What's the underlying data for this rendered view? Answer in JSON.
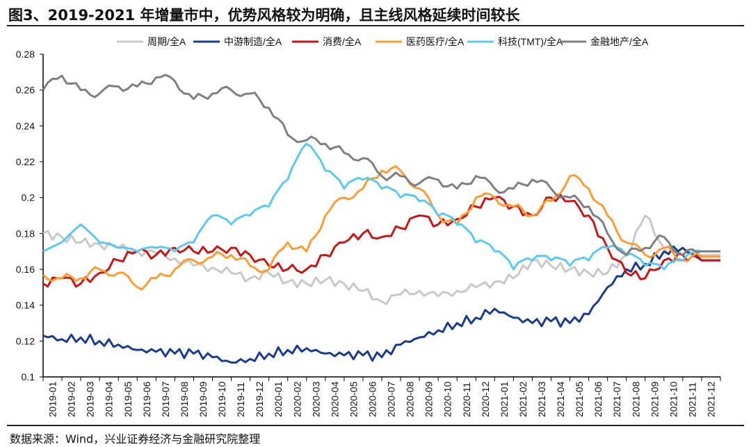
{
  "title": "图3、2019-2021 年增量市中，优势风格较为明确，且主线风格延续时间较长",
  "source": "数据来源：Wind，兴业证券经济与金融研究院整理",
  "chart_data": {
    "type": "line",
    "title": "",
    "xlabel": "",
    "ylabel": "",
    "ylim": [
      0.1,
      0.28
    ],
    "yticks": [
      "0.1",
      "0.12",
      "0.14",
      "0.16",
      "0.18",
      "0.2",
      "0.22",
      "0.24",
      "0.26",
      "0.28"
    ],
    "grid": false,
    "legend_position": "top",
    "x": [
      "2019-01",
      "2019-02",
      "2019-03",
      "2019-04",
      "2019-05",
      "2019-06",
      "2019-07",
      "2019-08",
      "2019-09",
      "2019-10",
      "2019-11",
      "2019-12",
      "2020-01",
      "2020-02",
      "2020-03",
      "2020-04",
      "2020-05",
      "2020-06",
      "2020-07",
      "2020-08",
      "2020-09",
      "2020-10",
      "2020-11",
      "2020-12",
      "2021-01",
      "2021-02",
      "2021-03",
      "2021-04",
      "2021-05",
      "2021-06",
      "2021-07",
      "2021-08",
      "2021-09",
      "2021-10",
      "2021-11",
      "2021-12"
    ],
    "series": [
      {
        "name": "周期/全A",
        "color": "#c8c8c8",
        "values": [
          0.18,
          0.178,
          0.175,
          0.174,
          0.172,
          0.17,
          0.169,
          0.166,
          0.162,
          0.161,
          0.158,
          0.155,
          0.158,
          0.153,
          0.152,
          0.154,
          0.152,
          0.148,
          0.142,
          0.146,
          0.148,
          0.145,
          0.148,
          0.15,
          0.153,
          0.155,
          0.165,
          0.162,
          0.16,
          0.158,
          0.158,
          0.168,
          0.19,
          0.172,
          0.168,
          0.168
        ]
      },
      {
        "name": "中游制造/全A",
        "color": "#1a3a8c",
        "values": [
          0.123,
          0.121,
          0.122,
          0.12,
          0.118,
          0.115,
          0.114,
          0.113,
          0.113,
          0.111,
          0.108,
          0.11,
          0.113,
          0.115,
          0.116,
          0.113,
          0.112,
          0.112,
          0.111,
          0.118,
          0.122,
          0.126,
          0.13,
          0.133,
          0.138,
          0.133,
          0.13,
          0.131,
          0.13,
          0.135,
          0.15,
          0.16,
          0.163,
          0.17,
          0.172,
          0.165
        ]
      },
      {
        "name": "消费/全A",
        "color": "#c81414",
        "values": [
          0.152,
          0.155,
          0.152,
          0.158,
          0.165,
          0.17,
          0.168,
          0.172,
          0.17,
          0.17,
          0.172,
          0.168,
          0.162,
          0.16,
          0.16,
          0.168,
          0.175,
          0.18,
          0.178,
          0.183,
          0.19,
          0.185,
          0.188,
          0.195,
          0.2,
          0.195,
          0.19,
          0.2,
          0.198,
          0.19,
          0.172,
          0.158,
          0.155,
          0.165,
          0.168,
          0.165
        ]
      },
      {
        "name": "医药医疗/全A",
        "color": "#ff9c33",
        "values": [
          0.157,
          0.155,
          0.155,
          0.16,
          0.158,
          0.15,
          0.155,
          0.16,
          0.165,
          0.167,
          0.168,
          0.162,
          0.16,
          0.175,
          0.17,
          0.19,
          0.2,
          0.205,
          0.215,
          0.215,
          0.205,
          0.19,
          0.185,
          0.2,
          0.2,
          0.195,
          0.19,
          0.198,
          0.212,
          0.205,
          0.19,
          0.175,
          0.168,
          0.172,
          0.165,
          0.167
        ]
      },
      {
        "name": "科技(TMT)/全A",
        "color": "#5bc8f0",
        "values": [
          0.17,
          0.175,
          0.185,
          0.175,
          0.172,
          0.17,
          0.172,
          0.17,
          0.175,
          0.19,
          0.185,
          0.19,
          0.195,
          0.21,
          0.23,
          0.215,
          0.205,
          0.21,
          0.205,
          0.2,
          0.198,
          0.19,
          0.185,
          0.175,
          0.17,
          0.16,
          0.165,
          0.165,
          0.162,
          0.165,
          0.172,
          0.168,
          0.162,
          0.16,
          0.165,
          0.17
        ]
      },
      {
        "name": "金融地产/全A",
        "color": "#7f7f7f",
        "values": [
          0.26,
          0.268,
          0.26,
          0.258,
          0.262,
          0.262,
          0.267,
          0.265,
          0.255,
          0.258,
          0.26,
          0.258,
          0.25,
          0.235,
          0.232,
          0.23,
          0.225,
          0.222,
          0.212,
          0.212,
          0.208,
          0.21,
          0.205,
          0.212,
          0.205,
          0.205,
          0.21,
          0.205,
          0.2,
          0.195,
          0.18,
          0.168,
          0.172,
          0.178,
          0.168,
          0.17
        ]
      }
    ]
  }
}
